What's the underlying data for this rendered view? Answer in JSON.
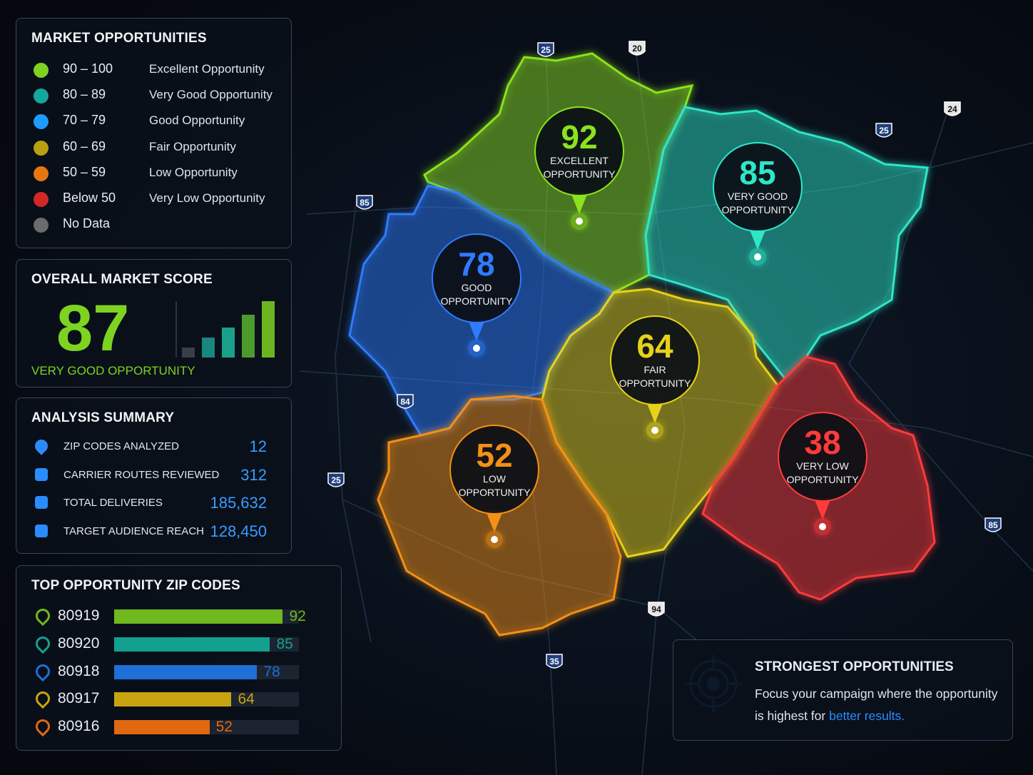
{
  "legend": {
    "title": "MARKET OPPORTUNITIES",
    "items": [
      {
        "range": "90 – 100",
        "label": "Excellent Opportunity",
        "color": "#7ed321"
      },
      {
        "range": "80 – 89",
        "label": "Very Good Opportunity",
        "color": "#15a89a"
      },
      {
        "range": "70 – 79",
        "label": "Good Opportunity",
        "color": "#1e9bff"
      },
      {
        "range": "60 – 69",
        "label": "Fair Opportunity",
        "color": "#b8a010"
      },
      {
        "range": "50 – 59",
        "label": "Low Opportunity",
        "color": "#e8760f"
      },
      {
        "range": "Below 50",
        "label": "Very Low Opportunity",
        "color": "#d42828"
      },
      {
        "range": "No Data",
        "color": "#6b6b6b"
      }
    ]
  },
  "score": {
    "title": "OVERALL MARKET SCORE",
    "value": "87",
    "label": "VERY GOOD OPPORTUNITY"
  },
  "summary": {
    "title": "ANALYSIS SUMMARY",
    "rows": [
      {
        "label": "ZIP CODES ANALYZED",
        "value": "12"
      },
      {
        "label": "CARRIER ROUTES REVIEWED",
        "value": "312"
      },
      {
        "label": "TOTAL DELIVERIES",
        "value": "185,632"
      },
      {
        "label": "TARGET AUDIENCE REACH",
        "value": "128,450"
      }
    ]
  },
  "top_zips": {
    "title": "TOP OPPORTUNITY ZIP CODES",
    "rows": [
      {
        "zip": "80919",
        "score": 92,
        "color": "#6fb81e"
      },
      {
        "zip": "80920",
        "score": 85,
        "color": "#14a08f"
      },
      {
        "zip": "80918",
        "score": 78,
        "color": "#1e6fd8"
      },
      {
        "zip": "80917",
        "score": 64,
        "color": "#c9a410"
      },
      {
        "zip": "80916",
        "score": 52,
        "color": "#e0680f"
      }
    ]
  },
  "map": {
    "regions": [
      {
        "score": "92",
        "label": "EXCELLENT OPPORTUNITY",
        "color": "#8be21f"
      },
      {
        "score": "85",
        "label": "VERY GOOD OPPORTUNITY",
        "color": "#2ee6c8"
      },
      {
        "score": "78",
        "label": "GOOD OPPORTUNITY",
        "color": "#2f7bff"
      },
      {
        "score": "64",
        "label": "FAIR OPPORTUNITY",
        "color": "#e6d21a"
      },
      {
        "score": "52",
        "label": "LOW OPPORTUNITY",
        "color": "#f39015"
      },
      {
        "score": "38",
        "label": "VERY LOW OPPORTUNITY",
        "color": "#ff3b3b"
      }
    ],
    "shields": [
      "25",
      "20",
      "24",
      "25",
      "85",
      "84",
      "25",
      "85",
      "94",
      "35"
    ]
  },
  "callout": {
    "title": "STRONGEST OPPORTUNITIES",
    "text": "Focus your campaign where the opportunity is highest for",
    "link": "better results."
  }
}
